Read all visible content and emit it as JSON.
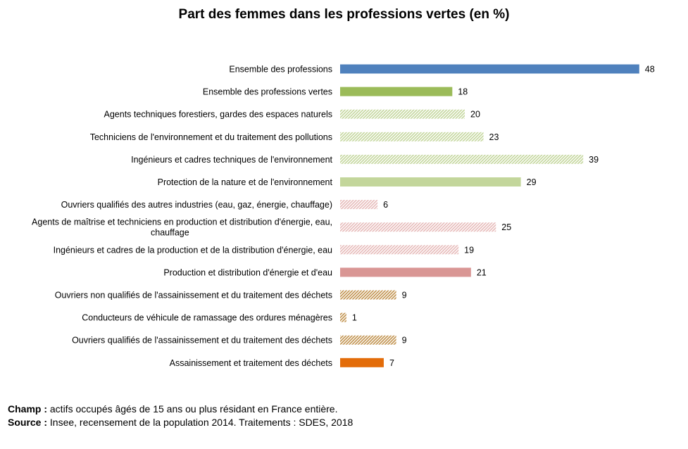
{
  "chart_data": {
    "type": "bar",
    "orientation": "horizontal",
    "title": "Part des femmes dans les professions vertes  (en %)",
    "xlabel": "",
    "ylabel": "",
    "xlim": [
      0,
      50
    ],
    "grid": false,
    "legend": "none",
    "categories": [
      "Ensemble des professions",
      "Ensemble des professions vertes",
      "Agents techniques forestiers, gardes des espaces naturels",
      "Techniciens de l'environnement et du traitement des pollutions",
      "Ingénieurs et cadres techniques de l'environnement",
      "Protection de la nature et de l'environnement",
      "Ouvriers qualifiés des autres industries (eau, gaz, énergie, chauffage)",
      "Agents de maîtrise et techniciens en production et distribution d'énergie, eau, chauffage",
      "Ingénieurs et cadres de la production et de la distribution d'énergie, eau",
      "Production et distribution d'énergie et d'eau",
      "Ouvriers non qualifiés de l'assainissement et du traitement des déchets",
      "Conducteurs de véhicule de ramassage des ordures ménagères",
      "Ouvriers qualifiés de l'assainissement et du traitement des déchets",
      "Assainissement et traitement des déchets"
    ],
    "values": [
      48,
      18,
      20,
      23,
      39,
      29,
      6,
      25,
      19,
      21,
      9,
      1,
      9,
      7
    ],
    "value_labels": [
      "48",
      "18",
      "20",
      "23",
      "39",
      "29",
      "6",
      "25",
      "19",
      "21",
      "9",
      "1",
      "9",
      "7"
    ],
    "bar_styles": [
      {
        "color": "#4f81bd",
        "fill": "solid"
      },
      {
        "color": "#9bbb59",
        "fill": "solid"
      },
      {
        "color": "#c3d69b",
        "fill": "hatched"
      },
      {
        "color": "#c3d69b",
        "fill": "hatched"
      },
      {
        "color": "#c3d69b",
        "fill": "hatched"
      },
      {
        "color": "#c3d69b",
        "fill": "solid"
      },
      {
        "color": "#e6b9b8",
        "fill": "hatched"
      },
      {
        "color": "#e6b9b8",
        "fill": "hatched"
      },
      {
        "color": "#e6b9b8",
        "fill": "hatched"
      },
      {
        "color": "#d99694",
        "fill": "solid"
      },
      {
        "color": "#c0904a",
        "fill": "hatched"
      },
      {
        "color": "#c0904a",
        "fill": "hatched"
      },
      {
        "color": "#c0904a",
        "fill": "hatched"
      },
      {
        "color": "#e36c09",
        "fill": "solid"
      }
    ]
  },
  "notes": {
    "champ_label": "Champ :",
    "champ_text": " actifs occupés âgés de 15 ans ou plus résidant en France entière.",
    "source_label": "Source :",
    "source_text": " Insee, recensement de la population 2014. Traitements : SDES, 2018"
  }
}
